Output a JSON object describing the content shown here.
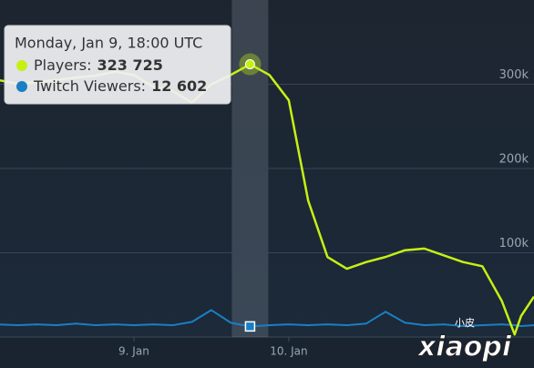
{
  "chart_data": {
    "type": "line",
    "x": [
      -21,
      -18,
      -15,
      -12,
      -9,
      -6,
      -3,
      0,
      3,
      6,
      9,
      12,
      15,
      18,
      21,
      24,
      27,
      30,
      33,
      36,
      39,
      42,
      45,
      48,
      51,
      54,
      57,
      59,
      60,
      62
    ],
    "xlim": [
      -20.75,
      62
    ],
    "xticks": [
      {
        "value": 0,
        "label": "9. Jan"
      },
      {
        "value": 24,
        "label": "10. Jan"
      }
    ],
    "ylim": [
      0,
      400000
    ],
    "yticks": [
      {
        "value": 100000,
        "label": "100k"
      },
      {
        "value": 200000,
        "label": "200k"
      },
      {
        "value": 300000,
        "label": "300k"
      }
    ],
    "grid": true,
    "series": [
      {
        "color": "#c6f014",
        "values": [
          305000,
          300500,
          302700,
          305000,
          308000,
          310000,
          315000,
          311000,
          297000,
          292000,
          278000,
          300000,
          311000,
          323725,
          311000,
          281000,
          162000,
          95000,
          81000,
          89000,
          95000,
          103000,
          105000,
          97000,
          89000,
          84000,
          43000,
          3000,
          25000,
          48000
        ]
      },
      {
        "color": "#1a7fc4",
        "values": [
          15000,
          14000,
          15000,
          14000,
          16000,
          14000,
          15000,
          14000,
          15000,
          14000,
          18000,
          32000,
          17000,
          12602,
          14000,
          15000,
          14000,
          15000,
          14000,
          16000,
          30000,
          17000,
          14000,
          15000,
          13000,
          14000,
          15000,
          14000,
          13000,
          14000
        ]
      }
    ],
    "tooltip": {
      "index": 13,
      "title": "Monday, Jan 9, 18:00 UTC",
      "items": [
        {
          "label": "Players:",
          "value_label": "323 725"
        },
        {
          "label": "Twitch Viewers:",
          "value_label": "12 602"
        }
      ]
    },
    "watermark": [
      "小皮",
      "xiaopi"
    ]
  }
}
